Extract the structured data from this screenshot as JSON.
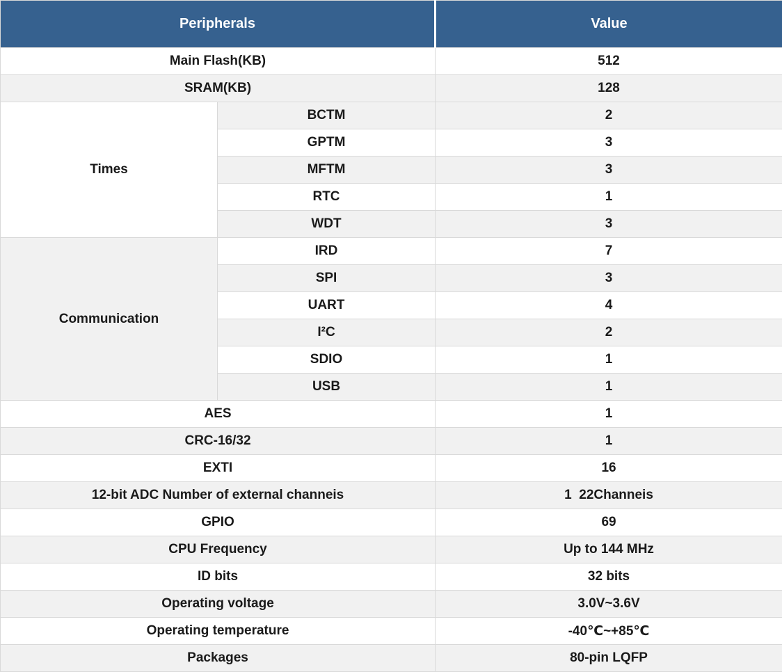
{
  "table": {
    "header": {
      "peripherals": "Peripherals",
      "value": "Value"
    },
    "colors": {
      "header_bg": "#36618F",
      "header_text": "#ffffff",
      "row_gray": "#f1f1f1",
      "row_white": "#ffffff",
      "border": "#d9d9d9",
      "text": "#1a1a1a"
    },
    "rows": [
      {
        "label": "Main Flash(KB)",
        "value": "512",
        "shade": "white"
      },
      {
        "label": "SRAM(KB)",
        "value": "128",
        "shade": "gray"
      },
      {
        "group": {
          "label": "Times",
          "span": 5,
          "shade": "white"
        },
        "sub": "BCTM",
        "value": "2",
        "shade": "gray"
      },
      {
        "sub": "GPTM",
        "value": "3",
        "shade": "white"
      },
      {
        "sub": "MFTM",
        "value": "3",
        "shade": "gray"
      },
      {
        "sub": "RTC",
        "value": "1",
        "shade": "white"
      },
      {
        "sub": "WDT",
        "value": "3",
        "shade": "gray"
      },
      {
        "group": {
          "label": "Communication",
          "span": 6,
          "shade": "gray"
        },
        "sub": "IRD",
        "value": "7",
        "shade": "white"
      },
      {
        "sub": "SPI",
        "value": "3",
        "shade": "gray"
      },
      {
        "sub": "UART",
        "value": "4",
        "shade": "white"
      },
      {
        "sub": "I²C",
        "value": "2",
        "shade": "gray"
      },
      {
        "sub": "SDIO",
        "value": "1",
        "shade": "white"
      },
      {
        "sub": "USB",
        "value": "1",
        "shade": "gray"
      },
      {
        "label": "AES",
        "value": "1",
        "shade": "white"
      },
      {
        "label": "CRC-16/32",
        "value": "1",
        "shade": "gray"
      },
      {
        "label": "EXTI",
        "value": "16",
        "shade": "white"
      },
      {
        "label": "12-bit ADC Number of external channeis",
        "value": "1  22Channeis",
        "shade": "gray"
      },
      {
        "label": "GPIO",
        "value": "69",
        "shade": "white"
      },
      {
        "label": "CPU Frequency",
        "value": "Up to 144 MHz",
        "shade": "gray"
      },
      {
        "label": "ID bits",
        "value": "32 bits",
        "shade": "white"
      },
      {
        "label": "Operating voltage",
        "value": "3.0V~3.6V",
        "shade": "gray"
      },
      {
        "label": "Operating temperature",
        "value": "-40℃~+85℃",
        "shade": "white"
      },
      {
        "label": "Packages",
        "value": "80-pin LQFP",
        "shade": "gray"
      }
    ]
  }
}
